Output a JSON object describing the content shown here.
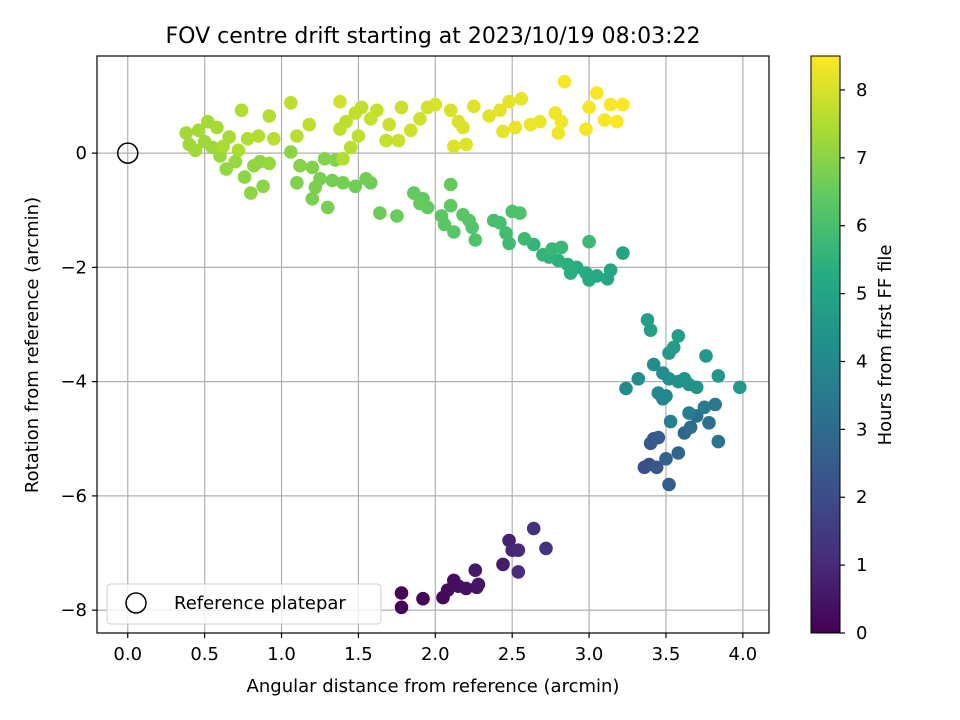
{
  "chart_data": {
    "type": "scatter",
    "title": "FOV centre drift starting at 2023/10/19 08:03:22",
    "xlabel": "Angular distance from reference (arcmin)",
    "ylabel": "Rotation from reference (arcmin)",
    "xlim": [
      -0.2,
      4.17
    ],
    "ylim": [
      -8.4,
      1.7
    ],
    "xticks": [
      0.0,
      0.5,
      1.0,
      1.5,
      2.0,
      2.5,
      3.0,
      3.5,
      4.0
    ],
    "xtick_labels": [
      "0.0",
      "0.5",
      "1.0",
      "1.5",
      "2.0",
      "2.5",
      "3.0",
      "3.5",
      "4.0"
    ],
    "yticks": [
      0,
      -2,
      -4,
      -6,
      -8
    ],
    "ytick_labels": [
      "0",
      "−2",
      "−4",
      "−6",
      "−8"
    ],
    "grid": true,
    "colormap": "viridis",
    "colorbar": {
      "label": "Hours from first FF file",
      "range": [
        0,
        8.5
      ],
      "ticks": [
        0,
        1,
        2,
        3,
        4,
        5,
        6,
        7,
        8
      ],
      "tick_labels": [
        "0",
        "1",
        "2",
        "3",
        "4",
        "5",
        "6",
        "7",
        "8"
      ]
    },
    "legend": {
      "placement": "lower-left",
      "entries": [
        {
          "label": "Reference platepar",
          "marker": "open-circle"
        }
      ]
    },
    "reference_point": {
      "x": 0.0,
      "y": 0.0
    },
    "series": [
      {
        "color_by": "hours",
        "points": [
          {
            "x": 1.78,
            "y": -7.95,
            "c": 0.05
          },
          {
            "x": 1.78,
            "y": -7.7,
            "c": 0.1
          },
          {
            "x": 1.92,
            "y": -7.8,
            "c": 0.15
          },
          {
            "x": 2.05,
            "y": -7.78,
            "c": 0.2
          },
          {
            "x": 2.08,
            "y": -7.65,
            "c": 0.25
          },
          {
            "x": 2.12,
            "y": -7.48,
            "c": 0.3
          },
          {
            "x": 2.15,
            "y": -7.58,
            "c": 0.35
          },
          {
            "x": 2.2,
            "y": -7.62,
            "c": 0.4
          },
          {
            "x": 2.27,
            "y": -7.6,
            "c": 0.45
          },
          {
            "x": 2.28,
            "y": -7.55,
            "c": 0.5
          },
          {
            "x": 2.26,
            "y": -7.3,
            "c": 0.6
          },
          {
            "x": 2.44,
            "y": -7.2,
            "c": 0.7
          },
          {
            "x": 2.48,
            "y": -6.78,
            "c": 0.8
          },
          {
            "x": 2.5,
            "y": -6.95,
            "c": 0.9
          },
          {
            "x": 2.54,
            "y": -6.95,
            "c": 1.0
          },
          {
            "x": 2.54,
            "y": -7.33,
            "c": 1.1
          },
          {
            "x": 2.64,
            "y": -6.57,
            "c": 1.2
          },
          {
            "x": 2.72,
            "y": -6.92,
            "c": 1.3
          },
          {
            "x": 3.36,
            "y": -5.5,
            "c": 2.0
          },
          {
            "x": 3.39,
            "y": -5.45,
            "c": 2.1
          },
          {
            "x": 3.42,
            "y": -5.0,
            "c": 2.2
          },
          {
            "x": 3.44,
            "y": -5.5,
            "c": 2.3
          },
          {
            "x": 3.4,
            "y": -5.08,
            "c": 2.4
          },
          {
            "x": 3.45,
            "y": -4.98,
            "c": 2.5
          },
          {
            "x": 3.52,
            "y": -5.8,
            "c": 2.6
          },
          {
            "x": 3.5,
            "y": -5.35,
            "c": 2.7
          },
          {
            "x": 3.58,
            "y": -5.25,
            "c": 2.8
          },
          {
            "x": 3.62,
            "y": -4.9,
            "c": 2.9
          },
          {
            "x": 3.66,
            "y": -4.8,
            "c": 3.0
          },
          {
            "x": 3.7,
            "y": -4.6,
            "c": 3.1
          },
          {
            "x": 3.78,
            "y": -4.72,
            "c": 3.2
          },
          {
            "x": 3.84,
            "y": -5.05,
            "c": 3.3
          },
          {
            "x": 3.82,
            "y": -4.4,
            "c": 3.4
          },
          {
            "x": 3.75,
            "y": -4.45,
            "c": 3.5
          },
          {
            "x": 3.65,
            "y": -4.55,
            "c": 3.6
          },
          {
            "x": 3.53,
            "y": -4.7,
            "c": 3.7
          },
          {
            "x": 3.48,
            "y": -4.3,
            "c": 3.8
          },
          {
            "x": 3.5,
            "y": -4.25,
            "c": 3.9
          },
          {
            "x": 3.45,
            "y": -4.2,
            "c": 4.0
          },
          {
            "x": 3.24,
            "y": -4.12,
            "c": 4.05
          },
          {
            "x": 3.32,
            "y": -3.95,
            "c": 4.1
          },
          {
            "x": 3.42,
            "y": -3.7,
            "c": 4.15
          },
          {
            "x": 3.48,
            "y": -3.85,
            "c": 4.2
          },
          {
            "x": 3.52,
            "y": -3.95,
            "c": 4.25
          },
          {
            "x": 3.58,
            "y": -4.0,
            "c": 4.3
          },
          {
            "x": 3.62,
            "y": -3.95,
            "c": 4.35
          },
          {
            "x": 3.65,
            "y": -4.05,
            "c": 4.4
          },
          {
            "x": 3.7,
            "y": -4.1,
            "c": 4.45
          },
          {
            "x": 3.76,
            "y": -3.55,
            "c": 4.5
          },
          {
            "x": 3.84,
            "y": -3.9,
            "c": 4.55
          },
          {
            "x": 3.98,
            "y": -4.1,
            "c": 4.6
          },
          {
            "x": 3.52,
            "y": -3.5,
            "c": 4.65
          },
          {
            "x": 3.55,
            "y": -3.4,
            "c": 4.7
          },
          {
            "x": 3.58,
            "y": -3.2,
            "c": 4.75
          },
          {
            "x": 3.38,
            "y": -2.92,
            "c": 4.8
          },
          {
            "x": 3.4,
            "y": -3.1,
            "c": 4.85
          },
          {
            "x": 3.22,
            "y": -1.75,
            "c": 5.0
          },
          {
            "x": 3.14,
            "y": -2.05,
            "c": 5.05
          },
          {
            "x": 3.12,
            "y": -2.2,
            "c": 5.1
          },
          {
            "x": 3.05,
            "y": -2.15,
            "c": 5.15
          },
          {
            "x": 3.0,
            "y": -2.22,
            "c": 5.2
          },
          {
            "x": 2.98,
            "y": -2.1,
            "c": 5.25
          },
          {
            "x": 2.92,
            "y": -2.0,
            "c": 5.3
          },
          {
            "x": 2.88,
            "y": -2.1,
            "c": 5.35
          },
          {
            "x": 2.86,
            "y": -1.95,
            "c": 5.4
          },
          {
            "x": 2.8,
            "y": -1.88,
            "c": 5.45
          },
          {
            "x": 2.74,
            "y": -1.82,
            "c": 5.5
          },
          {
            "x": 2.7,
            "y": -1.78,
            "c": 5.55
          },
          {
            "x": 2.64,
            "y": -1.6,
            "c": 5.6
          },
          {
            "x": 2.76,
            "y": -1.68,
            "c": 5.65
          },
          {
            "x": 2.82,
            "y": -1.65,
            "c": 5.7
          },
          {
            "x": 3.0,
            "y": -1.55,
            "c": 5.75
          },
          {
            "x": 2.58,
            "y": -1.5,
            "c": 5.8
          },
          {
            "x": 2.48,
            "y": -1.58,
            "c": 5.85
          },
          {
            "x": 2.46,
            "y": -1.4,
            "c": 5.9
          },
          {
            "x": 2.42,
            "y": -1.22,
            "c": 5.95
          },
          {
            "x": 2.38,
            "y": -1.18,
            "c": 6.0
          },
          {
            "x": 2.5,
            "y": -1.02,
            "c": 6.05
          },
          {
            "x": 2.55,
            "y": -1.05,
            "c": 6.1
          },
          {
            "x": 2.26,
            "y": -1.52,
            "c": 6.15
          },
          {
            "x": 2.24,
            "y": -1.3,
            "c": 6.2
          },
          {
            "x": 2.22,
            "y": -1.18,
            "c": 6.25
          },
          {
            "x": 2.18,
            "y": -1.08,
            "c": 6.3
          },
          {
            "x": 2.12,
            "y": -1.38,
            "c": 6.3
          },
          {
            "x": 2.06,
            "y": -1.25,
            "c": 6.35
          },
          {
            "x": 2.04,
            "y": -1.1,
            "c": 6.35
          },
          {
            "x": 2.1,
            "y": -0.92,
            "c": 6.4
          },
          {
            "x": 1.95,
            "y": -0.95,
            "c": 6.4
          },
          {
            "x": 1.92,
            "y": -0.8,
            "c": 6.45
          },
          {
            "x": 1.86,
            "y": -0.7,
            "c": 6.45
          },
          {
            "x": 1.9,
            "y": -0.88,
            "c": 6.5
          },
          {
            "x": 2.1,
            "y": -0.55,
            "c": 6.5
          },
          {
            "x": 1.75,
            "y": -1.1,
            "c": 6.55
          },
          {
            "x": 1.64,
            "y": -1.05,
            "c": 6.6
          },
          {
            "x": 1.58,
            "y": -0.52,
            "c": 6.6
          },
          {
            "x": 1.55,
            "y": -0.45,
            "c": 6.65
          },
          {
            "x": 1.48,
            "y": -0.58,
            "c": 6.65
          },
          {
            "x": 1.4,
            "y": -0.52,
            "c": 6.7
          },
          {
            "x": 1.33,
            "y": -0.48,
            "c": 6.7
          },
          {
            "x": 1.25,
            "y": -0.45,
            "c": 6.75
          },
          {
            "x": 1.3,
            "y": -0.95,
            "c": 6.75
          },
          {
            "x": 1.2,
            "y": -0.8,
            "c": 6.8
          },
          {
            "x": 1.22,
            "y": -0.6,
            "c": 6.8
          },
          {
            "x": 1.1,
            "y": -0.52,
            "c": 6.85
          },
          {
            "x": 1.2,
            "y": -0.25,
            "c": 6.85
          },
          {
            "x": 1.28,
            "y": -0.1,
            "c": 6.9
          },
          {
            "x": 1.35,
            "y": -0.12,
            "c": 6.9
          },
          {
            "x": 1.12,
            "y": -0.22,
            "c": 6.95
          },
          {
            "x": 1.06,
            "y": 0.02,
            "c": 7.0
          },
          {
            "x": 0.88,
            "y": -0.58,
            "c": 7.0
          },
          {
            "x": 0.8,
            "y": -0.7,
            "c": 7.05
          },
          {
            "x": 0.76,
            "y": -0.42,
            "c": 7.05
          },
          {
            "x": 0.82,
            "y": -0.22,
            "c": 7.1
          },
          {
            "x": 0.86,
            "y": -0.15,
            "c": 7.1
          },
          {
            "x": 0.92,
            "y": -0.18,
            "c": 7.15
          },
          {
            "x": 0.64,
            "y": -0.28,
            "c": 7.15
          },
          {
            "x": 0.7,
            "y": -0.15,
            "c": 7.2
          },
          {
            "x": 0.6,
            "y": -0.05,
            "c": 7.2
          },
          {
            "x": 0.55,
            "y": 0.1,
            "c": 7.25
          },
          {
            "x": 0.5,
            "y": 0.2,
            "c": 7.25
          },
          {
            "x": 0.44,
            "y": 0.05,
            "c": 7.3
          },
          {
            "x": 0.4,
            "y": 0.15,
            "c": 7.3
          },
          {
            "x": 0.38,
            "y": 0.35,
            "c": 7.3
          },
          {
            "x": 0.46,
            "y": 0.4,
            "c": 7.35
          },
          {
            "x": 0.52,
            "y": 0.55,
            "c": 7.35
          },
          {
            "x": 0.58,
            "y": 0.45,
            "c": 7.4
          },
          {
            "x": 0.66,
            "y": 0.28,
            "c": 7.4
          },
          {
            "x": 0.62,
            "y": 0.12,
            "c": 7.45
          },
          {
            "x": 0.72,
            "y": 0.05,
            "c": 7.45
          },
          {
            "x": 0.78,
            "y": 0.25,
            "c": 7.5
          },
          {
            "x": 0.74,
            "y": 0.75,
            "c": 7.5
          },
          {
            "x": 0.85,
            "y": 0.3,
            "c": 7.55
          },
          {
            "x": 0.92,
            "y": 0.65,
            "c": 7.55
          },
          {
            "x": 0.95,
            "y": 0.25,
            "c": 7.6
          },
          {
            "x": 1.1,
            "y": 0.3,
            "c": 7.6
          },
          {
            "x": 1.18,
            "y": 0.5,
            "c": 7.65
          },
          {
            "x": 1.06,
            "y": 0.88,
            "c": 7.65
          },
          {
            "x": 1.38,
            "y": 0.42,
            "c": 7.7
          },
          {
            "x": 1.42,
            "y": 0.55,
            "c": 7.7
          },
          {
            "x": 1.48,
            "y": 0.7,
            "c": 7.75
          },
          {
            "x": 1.52,
            "y": 0.8,
            "c": 7.75
          },
          {
            "x": 1.58,
            "y": 0.6,
            "c": 7.8
          },
          {
            "x": 1.62,
            "y": 0.75,
            "c": 7.8
          },
          {
            "x": 1.7,
            "y": 0.5,
            "c": 7.85
          },
          {
            "x": 1.78,
            "y": 0.8,
            "c": 7.85
          },
          {
            "x": 1.84,
            "y": 0.4,
            "c": 7.9
          },
          {
            "x": 1.9,
            "y": 0.6,
            "c": 7.9
          },
          {
            "x": 1.95,
            "y": 0.8,
            "c": 7.95
          },
          {
            "x": 1.38,
            "y": 0.9,
            "c": 7.95
          },
          {
            "x": 1.5,
            "y": 0.3,
            "c": 7.7
          },
          {
            "x": 1.45,
            "y": 0.1,
            "c": 7.6
          },
          {
            "x": 1.4,
            "y": -0.1,
            "c": 7.55
          },
          {
            "x": 1.68,
            "y": 0.22,
            "c": 7.8
          },
          {
            "x": 1.76,
            "y": 0.22,
            "c": 7.85
          },
          {
            "x": 2.0,
            "y": 0.85,
            "c": 8.0
          },
          {
            "x": 2.1,
            "y": 0.75,
            "c": 8.0
          },
          {
            "x": 2.15,
            "y": 0.55,
            "c": 8.05
          },
          {
            "x": 2.18,
            "y": 0.45,
            "c": 8.05
          },
          {
            "x": 2.12,
            "y": 0.12,
            "c": 8.1
          },
          {
            "x": 2.2,
            "y": 0.15,
            "c": 8.1
          },
          {
            "x": 2.25,
            "y": 0.82,
            "c": 8.15
          },
          {
            "x": 2.35,
            "y": 0.65,
            "c": 8.15
          },
          {
            "x": 2.42,
            "y": 0.75,
            "c": 8.2
          },
          {
            "x": 2.48,
            "y": 0.9,
            "c": 8.2
          },
          {
            "x": 2.44,
            "y": 0.38,
            "c": 8.2
          },
          {
            "x": 2.52,
            "y": 0.45,
            "c": 8.25
          },
          {
            "x": 2.56,
            "y": 0.95,
            "c": 8.25
          },
          {
            "x": 2.62,
            "y": 0.5,
            "c": 8.3
          },
          {
            "x": 2.68,
            "y": 0.55,
            "c": 8.3
          },
          {
            "x": 2.78,
            "y": 0.7,
            "c": 8.35
          },
          {
            "x": 2.8,
            "y": 0.35,
            "c": 8.35
          },
          {
            "x": 2.82,
            "y": 0.55,
            "c": 8.35
          },
          {
            "x": 2.84,
            "y": 1.25,
            "c": 8.4
          },
          {
            "x": 2.98,
            "y": 0.42,
            "c": 8.4
          },
          {
            "x": 3.0,
            "y": 0.8,
            "c": 8.4
          },
          {
            "x": 3.05,
            "y": 1.05,
            "c": 8.45
          },
          {
            "x": 3.1,
            "y": 0.58,
            "c": 8.45
          },
          {
            "x": 3.14,
            "y": 0.85,
            "c": 8.45
          },
          {
            "x": 3.18,
            "y": 0.55,
            "c": 8.5
          },
          {
            "x": 3.22,
            "y": 0.85,
            "c": 8.5
          }
        ]
      }
    ]
  }
}
